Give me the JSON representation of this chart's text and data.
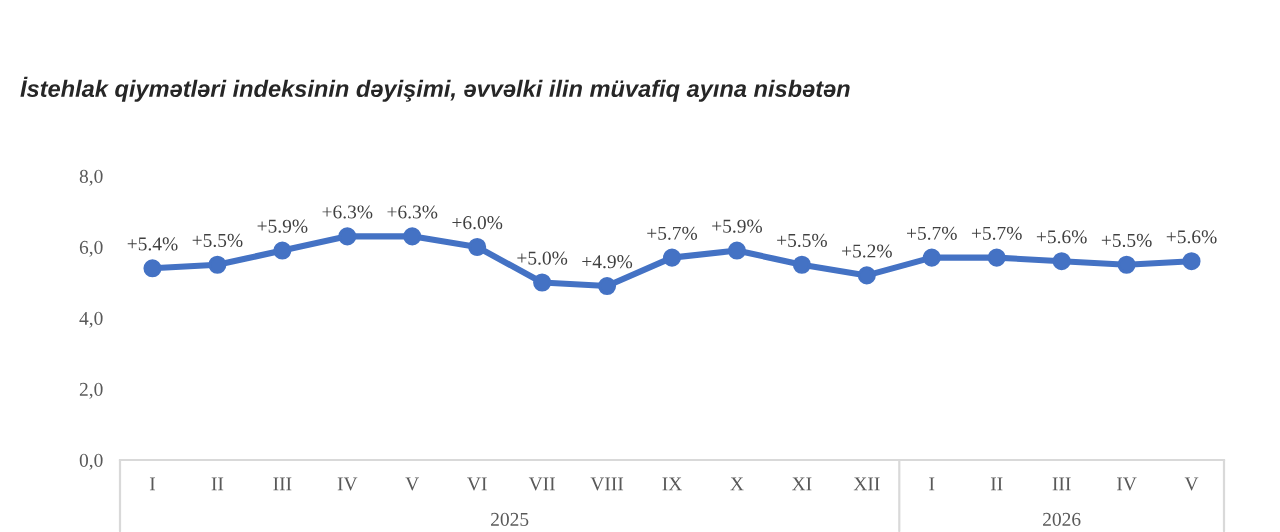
{
  "chart_data": {
    "type": "line",
    "title": "İstehlak qiymətləri indeksinin dəyişimi, əvvəlki ilin müvafiq ayına nisbətən",
    "categories": [
      "I",
      "II",
      "III",
      "IV",
      "V",
      "VI",
      "VII",
      "VIII",
      "IX",
      "X",
      "XI",
      "XII",
      "I",
      "II",
      "III",
      "IV",
      "V"
    ],
    "series": [
      {
        "color": "#4472c4",
        "values": [
          5.4,
          5.5,
          5.9,
          6.3,
          6.3,
          6.0,
          5.0,
          4.9,
          5.7,
          5.9,
          5.5,
          5.2,
          5.7,
          5.7,
          5.6,
          5.5,
          5.6
        ],
        "value_labels": [
          "+5.4%",
          "+5.5%",
          "+5.9%",
          "+6.3%",
          "+6.3%",
          "+6.0%",
          "+5.0%",
          "+4.9%",
          "+5.7%",
          "+5.9%",
          "+5.5%",
          "+5.2%",
          "+5.7%",
          "+5.7%",
          "+5.6%",
          "+5.5%",
          "+5.6%"
        ]
      }
    ],
    "ylim": [
      0,
      8
    ],
    "yticks": [
      {
        "value": 0,
        "label": "0,0"
      },
      {
        "value": 2,
        "label": "2,0"
      },
      {
        "value": 4,
        "label": "4,0"
      },
      {
        "value": 6,
        "label": "6,0"
      },
      {
        "value": 8,
        "label": "8,0"
      }
    ],
    "annotations": [
      "2025",
      "2026"
    ],
    "marker": "circle",
    "line_style": "solid",
    "grid": false,
    "legend": false
  }
}
